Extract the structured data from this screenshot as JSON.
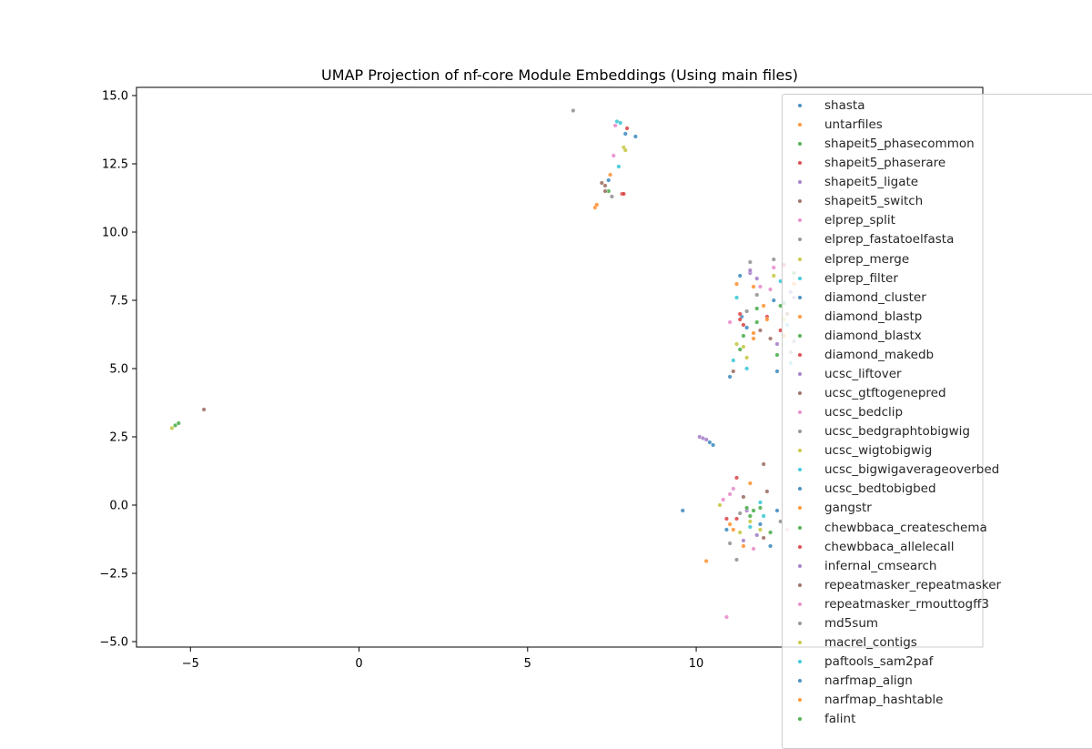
{
  "chart_data": {
    "type": "scatter",
    "title": "UMAP Projection of nf-core Module Embeddings (Using main files)",
    "xlabel": "",
    "ylabel": "",
    "xlim": [
      -6.6,
      18.5
    ],
    "ylim": [
      -5.2,
      15.3
    ],
    "xticks": [
      -5,
      0,
      5,
      10
    ],
    "xtick_labels": [
      "−5",
      "0",
      "5",
      "10"
    ],
    "yticks": [
      -5.0,
      -2.5,
      0.0,
      2.5,
      5.0,
      7.5,
      10.0,
      12.5,
      15.0
    ],
    "ytick_labels": [
      "−5.0",
      "−2.5",
      "0.0",
      "2.5",
      "5.0",
      "7.5",
      "10.0",
      "12.5",
      "15.0"
    ],
    "grid": false,
    "legend_position": "right, overlapping plot",
    "series": [
      {
        "name": "shasta",
        "color": "#1f77b4",
        "points": [
          [
            11.35,
            6.9
          ],
          [
            7.9,
            13.6
          ],
          [
            11.9,
            -0.7
          ],
          [
            12.3,
            7.5
          ]
        ]
      },
      {
        "name": "untarfiles",
        "color": "#ff7f0e",
        "points": [
          [
            7.45,
            12.1
          ],
          [
            11.7,
            8.0
          ],
          [
            11.1,
            -0.9
          ],
          [
            12.6,
            6.2
          ]
        ]
      },
      {
        "name": "shapeit5_phasecommon",
        "color": "#2ca02c",
        "points": [
          [
            -5.45,
            2.92
          ],
          [
            11.8,
            7.2
          ],
          [
            11.6,
            -0.4
          ],
          [
            12.4,
            5.5
          ]
        ]
      },
      {
        "name": "shapeit5_phaserare",
        "color": "#d62728",
        "points": [
          [
            7.95,
            13.8
          ],
          [
            11.4,
            6.6
          ],
          [
            11.2,
            1.0
          ],
          [
            12.1,
            6.9
          ]
        ]
      },
      {
        "name": "shapeit5_ligate",
        "color": "#9467bd",
        "points": [
          [
            11.6,
            8.5
          ],
          [
            10.1,
            2.5
          ],
          [
            11.5,
            -0.2
          ],
          [
            12.8,
            7.8
          ]
        ]
      },
      {
        "name": "shapeit5_switch",
        "color": "#8c564b",
        "points": [
          [
            -4.6,
            3.5
          ],
          [
            7.3,
            11.7
          ],
          [
            11.9,
            6.4
          ],
          [
            12.0,
            -1.2
          ]
        ]
      },
      {
        "name": "elprep_split",
        "color": "#e377c2",
        "points": [
          [
            7.6,
            13.9
          ],
          [
            10.9,
            -4.1
          ],
          [
            11.0,
            0.4
          ],
          [
            12.3,
            8.7
          ]
        ]
      },
      {
        "name": "elprep_fastatoelfasta",
        "color": "#7f7f7f",
        "points": [
          [
            6.35,
            14.45
          ],
          [
            11.2,
            -2.0
          ],
          [
            11.8,
            7.7
          ],
          [
            12.5,
            -0.6
          ]
        ]
      },
      {
        "name": "elprep_merge",
        "color": "#bcbd22",
        "points": [
          [
            -5.55,
            2.82
          ],
          [
            7.85,
            13.1
          ],
          [
            11.5,
            5.4
          ],
          [
            11.3,
            -1.0
          ]
        ]
      },
      {
        "name": "elprep_filter",
        "color": "#17becf",
        "points": [
          [
            7.65,
            14.05
          ],
          [
            11.1,
            5.3
          ],
          [
            11.6,
            -0.8
          ],
          [
            12.7,
            6.6
          ]
        ]
      },
      {
        "name": "diamond_cluster",
        "color": "#1f77b4",
        "points": [
          [
            9.6,
            -0.2
          ],
          [
            10.4,
            2.3
          ],
          [
            11.0,
            4.7
          ],
          [
            12.2,
            -1.5
          ]
        ]
      },
      {
        "name": "diamond_blastp",
        "color": "#ff7f0e",
        "points": [
          [
            7.0,
            10.9
          ],
          [
            10.3,
            -2.05
          ],
          [
            11.7,
            6.3
          ],
          [
            12.9,
            8.1
          ]
        ]
      },
      {
        "name": "diamond_blastx",
        "color": "#2ca02c",
        "points": [
          [
            7.4,
            11.5
          ],
          [
            11.9,
            -0.1
          ],
          [
            12.5,
            7.3
          ],
          [
            11.4,
            6.2
          ]
        ]
      },
      {
        "name": "diamond_makedb",
        "color": "#d62728",
        "points": [
          [
            7.8,
            11.4
          ],
          [
            11.3,
            7.0
          ],
          [
            10.9,
            -0.5
          ],
          [
            12.6,
            8.8
          ]
        ]
      },
      {
        "name": "ucsc_liftover",
        "color": "#9467bd",
        "points": [
          [
            10.2,
            2.45
          ],
          [
            11.8,
            8.3
          ],
          [
            11.4,
            -1.3
          ],
          [
            12.4,
            5.9
          ]
        ]
      },
      {
        "name": "ucsc_gtftogenepred",
        "color": "#8c564b",
        "points": [
          [
            7.2,
            11.8
          ],
          [
            11.1,
            4.9
          ],
          [
            12.1,
            0.5
          ],
          [
            12.7,
            7.0
          ]
        ]
      },
      {
        "name": "ucsc_bedclip",
        "color": "#e377c2",
        "points": [
          [
            11.0,
            6.7
          ],
          [
            10.8,
            0.2
          ],
          [
            11.7,
            -1.6
          ],
          [
            12.2,
            7.9
          ]
        ]
      },
      {
        "name": "ucsc_bedgraphtobigwig",
        "color": "#7f7f7f",
        "points": [
          [
            7.5,
            11.3
          ],
          [
            11.6,
            8.9
          ],
          [
            11.3,
            -0.3
          ],
          [
            12.9,
            6.0
          ]
        ]
      },
      {
        "name": "ucsc_wigtobigwig",
        "color": "#bcbd22",
        "points": [
          [
            11.4,
            5.8
          ],
          [
            11.9,
            -0.9
          ],
          [
            10.7,
            0.0
          ],
          [
            12.3,
            8.4
          ]
        ]
      },
      {
        "name": "ucsc_bigwigaverageoverbed",
        "color": "#17becf",
        "points": [
          [
            7.7,
            12.4
          ],
          [
            11.2,
            7.6
          ],
          [
            12.0,
            -0.4
          ],
          [
            12.8,
            5.2
          ]
        ]
      },
      {
        "name": "ucsc_bedtobigbed",
        "color": "#1f77b4",
        "points": [
          [
            8.2,
            13.5
          ],
          [
            10.5,
            2.2
          ],
          [
            11.5,
            6.5
          ],
          [
            12.4,
            -0.2
          ]
        ]
      },
      {
        "name": "gangstr",
        "color": "#ff7f0e",
        "points": [
          [
            11.2,
            8.1
          ],
          [
            11.0,
            -0.7
          ],
          [
            12.1,
            6.8
          ],
          [
            11.6,
            0.8
          ]
        ]
      },
      {
        "name": "chewbbaca_createschema",
        "color": "#2ca02c",
        "points": [
          [
            -5.35,
            3.0
          ],
          [
            11.7,
            -0.2
          ],
          [
            12.6,
            7.4
          ],
          [
            11.3,
            5.7
          ]
        ]
      },
      {
        "name": "chewbbaca_allelecall",
        "color": "#d62728",
        "points": [
          [
            7.85,
            11.4
          ],
          [
            11.3,
            6.8
          ],
          [
            11.2,
            -0.5
          ],
          [
            12.5,
            6.4
          ]
        ]
      },
      {
        "name": "infernal_cmsearch",
        "color": "#9467bd",
        "points": [
          [
            11.6,
            8.6
          ],
          [
            10.3,
            2.4
          ],
          [
            11.8,
            -1.1
          ],
          [
            12.9,
            7.6
          ]
        ]
      },
      {
        "name": "repeatmasker_repeatmasker",
        "color": "#8c564b",
        "points": [
          [
            7.3,
            11.5
          ],
          [
            12.0,
            1.5
          ],
          [
            11.4,
            0.3
          ],
          [
            12.2,
            6.1
          ]
        ]
      },
      {
        "name": "repeatmasker_rmouttogff3",
        "color": "#e377c2",
        "points": [
          [
            7.55,
            12.8
          ],
          [
            11.1,
            0.6
          ],
          [
            11.9,
            8.0
          ],
          [
            12.7,
            -0.9
          ]
        ]
      },
      {
        "name": "md5sum",
        "color": "#7f7f7f",
        "points": [
          [
            11.5,
            7.1
          ],
          [
            11.0,
            -1.4
          ],
          [
            12.3,
            9.0
          ],
          [
            12.8,
            5.6
          ]
        ]
      },
      {
        "name": "macrel_contigs",
        "color": "#bcbd22",
        "points": [
          [
            7.9,
            13.0
          ],
          [
            11.6,
            -0.6
          ],
          [
            11.2,
            5.9
          ],
          [
            12.6,
            6.8
          ]
        ]
      },
      {
        "name": "paftools_sam2paf",
        "color": "#17becf",
        "points": [
          [
            7.75,
            14.0
          ],
          [
            11.5,
            5.0
          ],
          [
            11.9,
            0.1
          ],
          [
            12.5,
            8.2
          ]
        ]
      },
      {
        "name": "narfmap_align",
        "color": "#1f77b4",
        "points": [
          [
            7.4,
            11.9
          ],
          [
            11.3,
            8.4
          ],
          [
            10.9,
            -0.9
          ],
          [
            12.4,
            4.9
          ]
        ]
      },
      {
        "name": "narfmap_hashtable",
        "color": "#ff7f0e",
        "points": [
          [
            7.05,
            11.0
          ],
          [
            11.7,
            6.1
          ],
          [
            11.4,
            -1.5
          ],
          [
            12.0,
            7.3
          ]
        ]
      },
      {
        "name": "falint",
        "color": "#2ca02c",
        "points": [
          [
            11.8,
            6.7
          ],
          [
            11.5,
            -0.1
          ],
          [
            12.2,
            -1.0
          ],
          [
            12.9,
            8.5
          ]
        ]
      }
    ]
  }
}
